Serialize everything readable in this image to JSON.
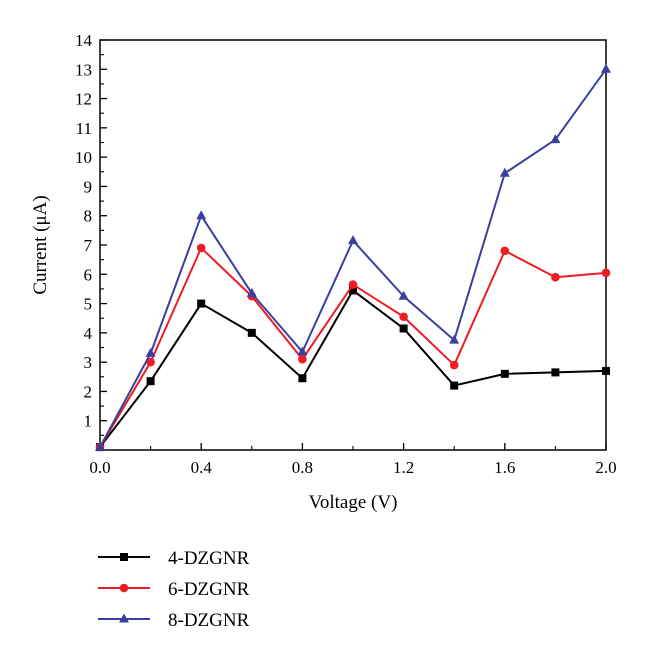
{
  "chart_data": {
    "type": "line",
    "xlabel": "Voltage (V)",
    "ylabel": "Current (μA)",
    "xlim": [
      0.0,
      2.0
    ],
    "ylim": [
      0,
      14
    ],
    "x_ticks": [
      "0.0",
      "0.4",
      "0.8",
      "1.2",
      "1.6",
      "2.0"
    ],
    "y_ticks": [
      "1",
      "2",
      "3",
      "4",
      "5",
      "6",
      "7",
      "8",
      "9",
      "10",
      "11",
      "12",
      "13",
      "14"
    ],
    "grid": false,
    "legend_position": "bottom-left, below plot",
    "x": [
      0.0,
      0.2,
      0.4,
      0.6,
      0.8,
      1.0,
      1.2,
      1.4,
      1.6,
      1.8,
      2.0
    ],
    "series": [
      {
        "name": "4-DZGNR",
        "color": "#000000",
        "marker": "square",
        "values": [
          0.1,
          2.35,
          5.0,
          4.0,
          2.45,
          5.45,
          4.15,
          2.2,
          2.6,
          2.65,
          2.7
        ]
      },
      {
        "name": "6-DZGNR",
        "color": "#ee1c24",
        "marker": "circle",
        "values": [
          0.1,
          3.0,
          6.9,
          5.25,
          3.1,
          5.65,
          4.55,
          2.9,
          6.8,
          5.9,
          6.05
        ]
      },
      {
        "name": "8-DZGNR",
        "color": "#3b3f9e",
        "marker": "triangle",
        "values": [
          0.1,
          3.3,
          8.0,
          5.35,
          3.35,
          7.15,
          5.25,
          3.75,
          9.45,
          10.6,
          13.0
        ]
      }
    ]
  }
}
